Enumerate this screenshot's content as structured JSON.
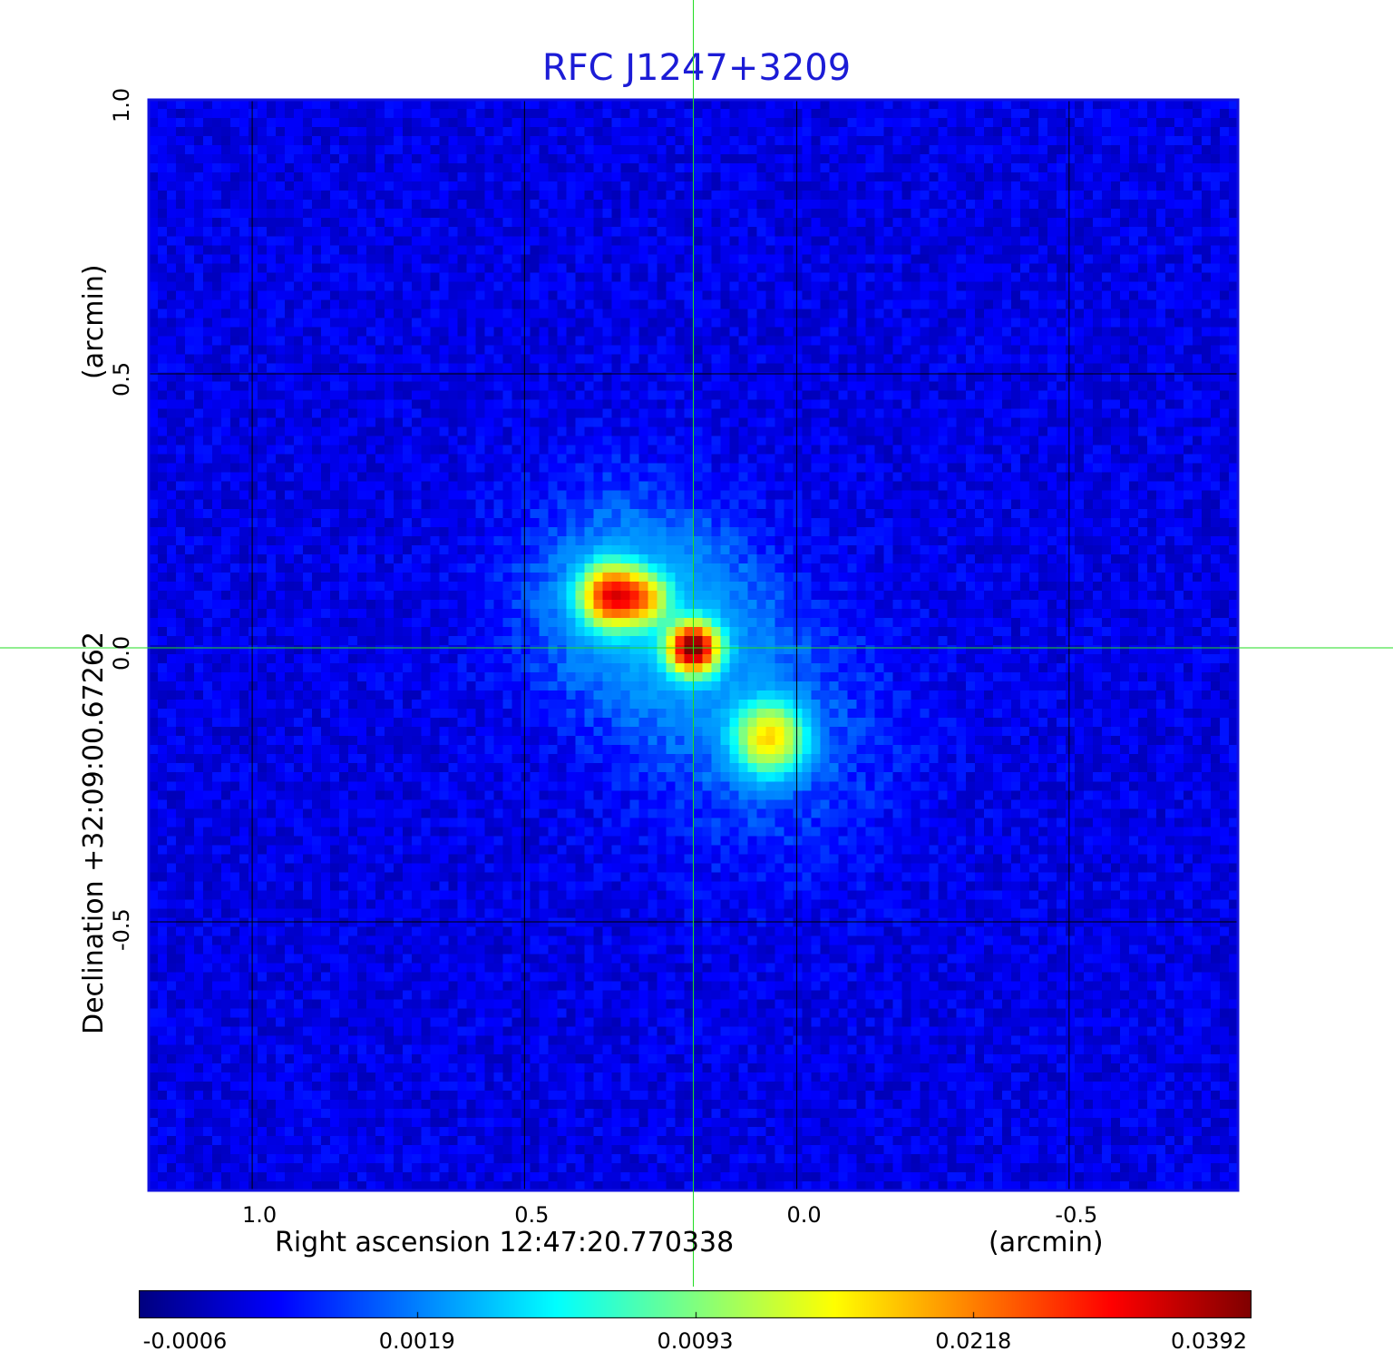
{
  "chart_data": {
    "type": "heatmap",
    "title": "RFC J1247+3209",
    "xlabel": "Right ascension  12:47:20.770338",
    "xlabel_unit": "(arcmin)",
    "ylabel": "Declination  +32:09:00.67262",
    "ylabel_unit": "(arcmin)",
    "x_ticks": [
      "1.0",
      "0.5",
      "0.0",
      "-0.5"
    ],
    "y_ticks": [
      "1.0",
      "0.5",
      "0.0",
      "-0.5"
    ],
    "xlim": [
      1.19,
      -0.81
    ],
    "ylim": [
      -0.99,
      1.0
    ],
    "grid": true,
    "crosshair": {
      "x": 0.19,
      "y": 0.0,
      "color": "#22dd22"
    },
    "colormap": "jet",
    "colorbar_ticks": [
      "-0.0006",
      "0.0019",
      "0.0093",
      "0.0218",
      "0.0392"
    ],
    "value_range": [
      -0.0006,
      0.0392
    ],
    "background_level": 0.0004,
    "components": [
      {
        "x": 0.19,
        "y": 0.0,
        "peak": 0.0392,
        "sigma_arcmin": 0.028
      },
      {
        "x": 0.34,
        "y": 0.095,
        "peak": 0.028,
        "sigma_arcmin": 0.035
      },
      {
        "x": 0.28,
        "y": 0.09,
        "peak": 0.014,
        "sigma_arcmin": 0.03
      },
      {
        "x": 0.05,
        "y": -0.165,
        "peak": 0.016,
        "sigma_arcmin": 0.04
      }
    ],
    "colors": {
      "frame": "#1010e0",
      "grid": "#000000",
      "title": "#1c1cd6"
    }
  }
}
